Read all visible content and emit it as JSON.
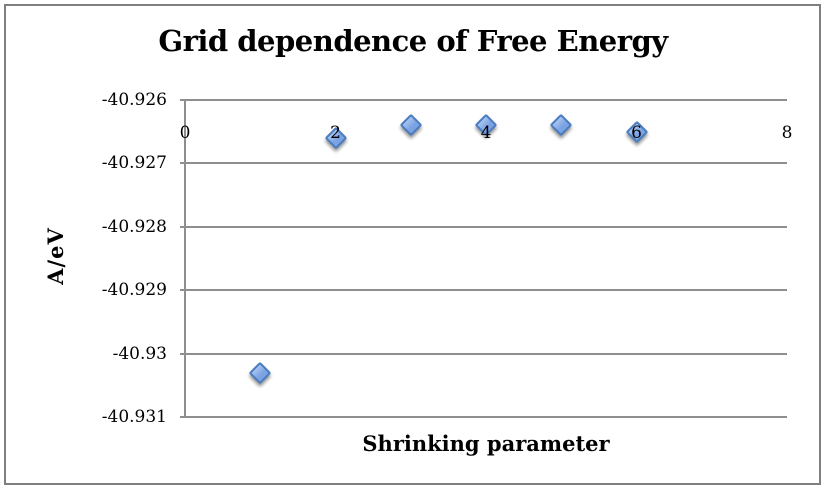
{
  "chart_data": {
    "type": "scatter",
    "title": "Grid dependence of Free Energy",
    "xlabel": "Shrinking parameter",
    "ylabel": "A/eV",
    "x": [
      1,
      2,
      3,
      4,
      5,
      6
    ],
    "y": [
      -40.9303,
      -40.9266,
      -40.9264,
      -40.9264,
      -40.9264,
      -40.9265
    ],
    "xlim": [
      0,
      8
    ],
    "ylim": [
      -40.931,
      -40.926
    ],
    "x_tick_values": [
      0,
      2,
      4,
      6,
      8
    ],
    "x_tick_labels": [
      "0",
      "2",
      "4",
      "6",
      "8"
    ],
    "y_tick_values": [
      -40.926,
      -40.927,
      -40.928,
      -40.929,
      -40.93,
      -40.931
    ],
    "y_tick_labels": [
      "-40.926",
      "-40.927",
      "-40.928",
      "-40.929",
      "-40.93",
      "-40.931"
    ],
    "grid": "horizontal",
    "legend": "none",
    "marker": "diamond",
    "colors": {
      "marker_fill": "#7ba3e3",
      "marker_light": "#a9c4ef",
      "marker_border": "#4a7cc0",
      "gridline": "#8e8e8e",
      "chart_border": "#7f7f7f",
      "text": "#000000",
      "background": "#ffffff"
    }
  }
}
